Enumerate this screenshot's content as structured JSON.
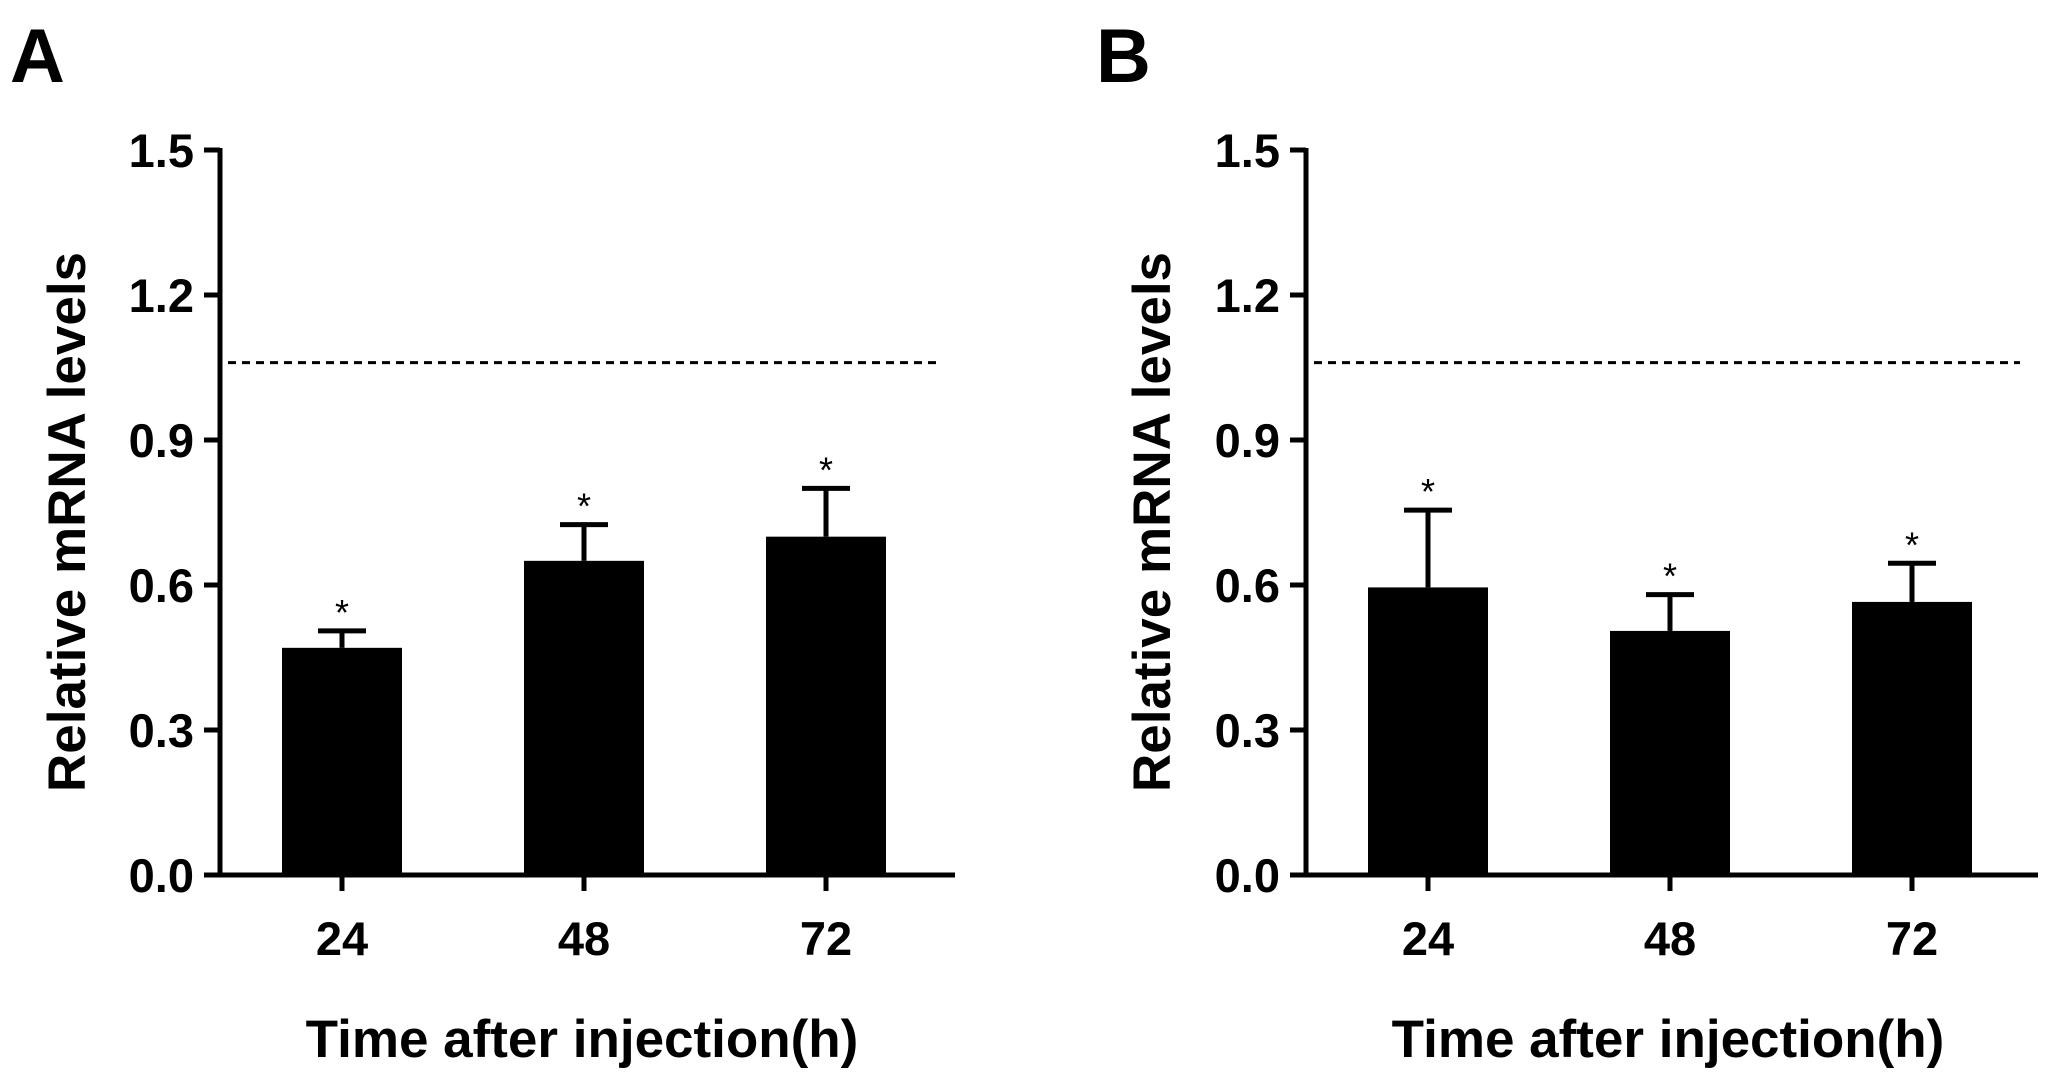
{
  "chart_data": [
    {
      "panel": "A",
      "type": "bar",
      "categories": [
        "24",
        "48",
        "72"
      ],
      "values": [
        0.47,
        0.65,
        0.7
      ],
      "errors": [
        0.035,
        0.075,
        0.1
      ],
      "annotations": [
        "*",
        "*",
        "*"
      ],
      "reference_line": 1.06,
      "xlabel": "Time after injection(h)",
      "ylabel": "Relative mRNA levels",
      "ylim": [
        0,
        1.5
      ],
      "yticks": [
        "0.0",
        "0.3",
        "0.6",
        "0.9",
        "1.2",
        "1.5"
      ],
      "bar_color": "#000000"
    },
    {
      "panel": "B",
      "type": "bar",
      "categories": [
        "24",
        "48",
        "72"
      ],
      "values": [
        0.595,
        0.505,
        0.565
      ],
      "errors": [
        0.16,
        0.075,
        0.08
      ],
      "annotations": [
        "*",
        "*",
        "*"
      ],
      "reference_line": 1.06,
      "xlabel": "Time after injection(h)",
      "ylabel": "Relative mRNA levels",
      "ylim": [
        0,
        1.5
      ],
      "yticks": [
        "0.0",
        "0.3",
        "0.6",
        "0.9",
        "1.2",
        "1.5"
      ],
      "bar_color": "#000000"
    }
  ]
}
